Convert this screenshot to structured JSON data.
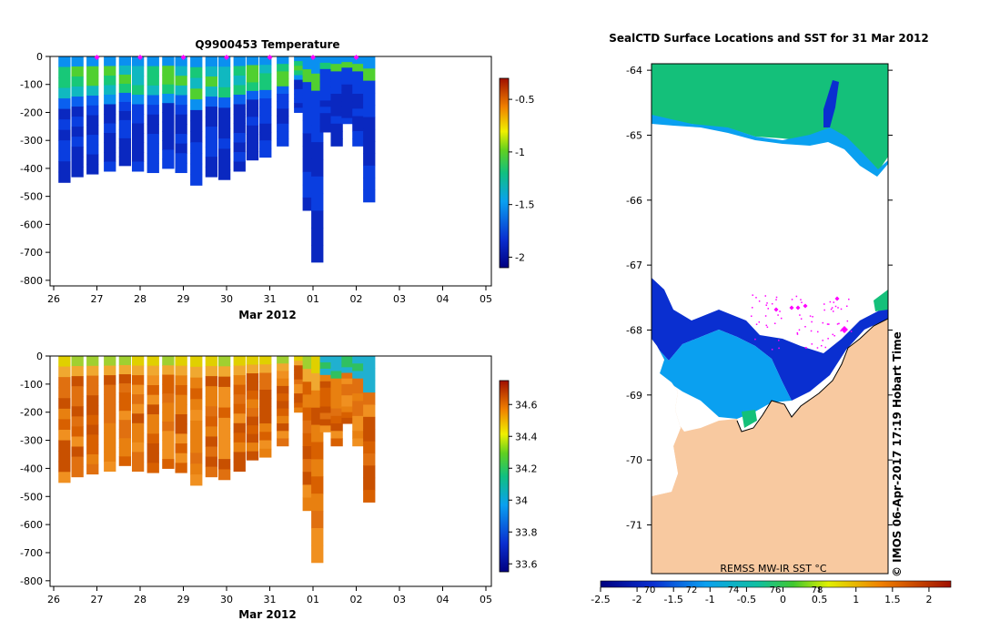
{
  "colors": {
    "land": "#f8c9a0",
    "ice": "#ffffff",
    "marker": "#ff00ff"
  },
  "chart_data": [
    {
      "type": "heatmap",
      "title": "Q9900453  Temperature",
      "xlabel": "Mar 2012",
      "ylabel": "",
      "x_ticks": [
        "26",
        "27",
        "28",
        "29",
        "30",
        "31",
        "01",
        "02",
        "03",
        "04",
        "05"
      ],
      "y_ticks": [
        "0",
        "-100",
        "-200",
        "-300",
        "-400",
        "-500",
        "-600",
        "-700",
        "-800"
      ],
      "ylim": [
        -820,
        0
      ],
      "colorbar": {
        "ticks": [
          "-0.5",
          "-1",
          "-1.5",
          "-2"
        ],
        "values": [
          -0.5,
          -1,
          -1.5,
          -2
        ],
        "range": [
          -2.1,
          -0.3
        ]
      },
      "profile_markers_days": [
        27,
        28,
        29,
        30,
        31,
        32,
        33
      ],
      "profiles": [
        {
          "day": 26.25,
          "depth": 450
        },
        {
          "day": 26.55,
          "depth": 430
        },
        {
          "day": 26.9,
          "depth": 420
        },
        {
          "day": 27.3,
          "depth": 410
        },
        {
          "day": 27.65,
          "depth": 390
        },
        {
          "day": 27.95,
          "depth": 410
        },
        {
          "day": 28.3,
          "depth": 415
        },
        {
          "day": 28.65,
          "depth": 400
        },
        {
          "day": 28.95,
          "depth": 415
        },
        {
          "day": 29.3,
          "depth": 460
        },
        {
          "day": 29.65,
          "depth": 430
        },
        {
          "day": 29.95,
          "depth": 440
        },
        {
          "day": 30.3,
          "depth": 410
        },
        {
          "day": 30.6,
          "depth": 370
        },
        {
          "day": 30.9,
          "depth": 360
        },
        {
          "day": 31.3,
          "depth": 320
        },
        {
          "day": 31.7,
          "depth": 200
        },
        {
          "day": 31.9,
          "depth": 550
        },
        {
          "day": 32.1,
          "depth": 735
        },
        {
          "day": 32.3,
          "depth": 270
        },
        {
          "day": 32.55,
          "depth": 320
        },
        {
          "day": 32.8,
          "depth": 240
        },
        {
          "day": 33.05,
          "depth": 320
        },
        {
          "day": 33.3,
          "depth": 520
        }
      ]
    },
    {
      "type": "heatmap",
      "title": "",
      "xlabel": "Mar 2012",
      "ylabel": "",
      "x_ticks": [
        "26",
        "27",
        "28",
        "29",
        "30",
        "31",
        "01",
        "02",
        "03",
        "04",
        "05"
      ],
      "y_ticks": [
        "0",
        "-100",
        "-200",
        "-300",
        "-400",
        "-500",
        "-600",
        "-700",
        "-800"
      ],
      "ylim": [
        -820,
        0
      ],
      "colorbar": {
        "ticks": [
          "34.6",
          "34.4",
          "34.2",
          "34",
          "33.8",
          "33.6"
        ],
        "values": [
          34.6,
          34.4,
          34.2,
          34,
          33.8,
          33.6
        ],
        "range": [
          33.55,
          34.75
        ]
      }
    },
    {
      "type": "heatmap",
      "title": "SealCTD Surface Locations and SST for 31 Mar 2012",
      "xlabel": "",
      "ylabel": "",
      "y_ticks": [
        "-64",
        "-65",
        "-66",
        "-67",
        "-68",
        "-69",
        "-70",
        "-71"
      ],
      "ylim": [
        -71.75,
        -63.9
      ],
      "x_ticks_top": [
        "70",
        "72",
        "74",
        "76",
        "78"
      ],
      "colorbar": {
        "ticks": [
          "-2.5",
          "-2",
          "-1.5",
          "-1",
          "-0.5",
          "0",
          "0.5",
          "1",
          "1.5",
          "2"
        ],
        "values": [
          -2.5,
          -2,
          -1.5,
          -1,
          -0.5,
          0,
          0.5,
          1,
          1.5,
          2
        ],
        "range": [
          -2.5,
          2.3
        ]
      },
      "product_label": "REMSS MW-IR SST °C",
      "credit": "© IMOS 06-Apr-2017 17:19 Hobart Time"
    }
  ]
}
